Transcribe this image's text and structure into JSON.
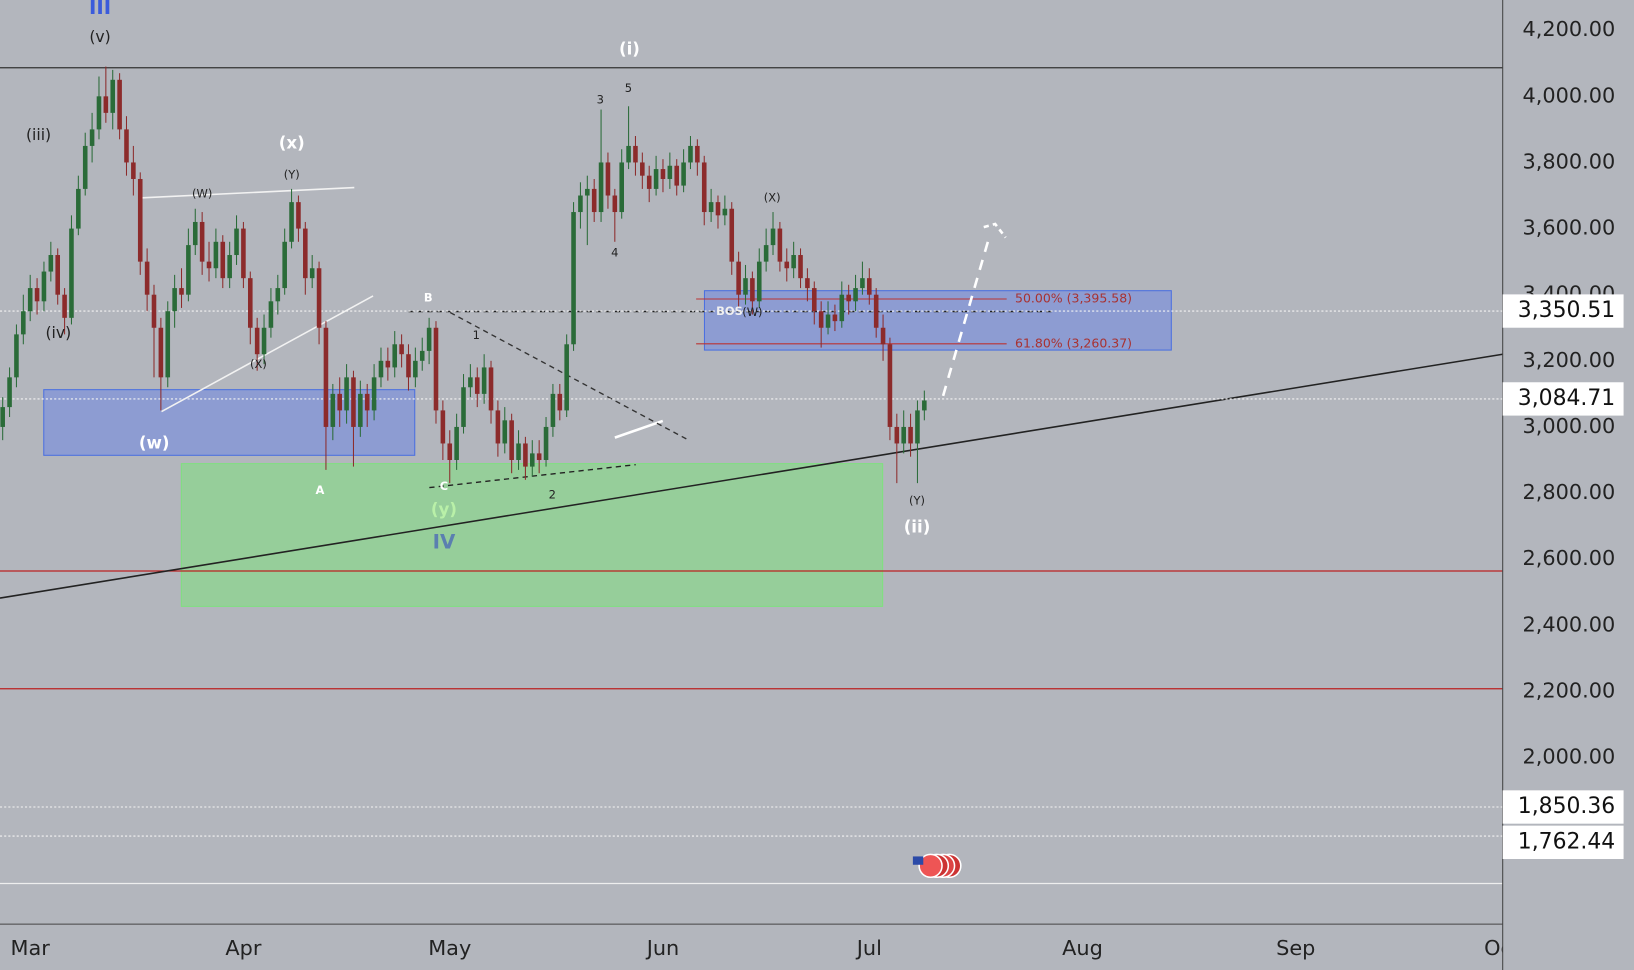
{
  "chart_data": {
    "type": "candlestick",
    "x": [
      -4,
      -3,
      -2,
      -1,
      0,
      1,
      2,
      3,
      4,
      5,
      6,
      7,
      8,
      9,
      10,
      11,
      12,
      13,
      14,
      15,
      16,
      17,
      18,
      19,
      20,
      21,
      22,
      23,
      24,
      25,
      26,
      27,
      28,
      29,
      30,
      31,
      32,
      33,
      34,
      35,
      36,
      37,
      38,
      39,
      40,
      41,
      42,
      43,
      44,
      45,
      46,
      47,
      48,
      49,
      50,
      51,
      52,
      53,
      54,
      55,
      56,
      57,
      58,
      59,
      60,
      61,
      62,
      63,
      64,
      65,
      66,
      67,
      68,
      69,
      70,
      71,
      72,
      73,
      74,
      75,
      76,
      77,
      78,
      79,
      80,
      81,
      82,
      83,
      84,
      85,
      86,
      87,
      88,
      89,
      90,
      91,
      92,
      93,
      94,
      95,
      96,
      97,
      98,
      99,
      100,
      101,
      102,
      103,
      104,
      105,
      106,
      107,
      108,
      109,
      110,
      111,
      112,
      113,
      114,
      115,
      116,
      117,
      118,
      119,
      120,
      121,
      122,
      123,
      124,
      125,
      126,
      127,
      128,
      129,
      130
    ],
    "open": [
      3000,
      3060,
      3150,
      3280,
      3350,
      3420,
      3380,
      3470,
      3520,
      3400,
      3330,
      3600,
      3720,
      3850,
      3900,
      4000,
      3950,
      4050,
      3900,
      3800,
      3750,
      3500,
      3400,
      3300,
      3150,
      3350,
      3420,
      3400,
      3550,
      3620,
      3500,
      3480,
      3560,
      3450,
      3520,
      3600,
      3450,
      3300,
      3220,
      3300,
      3380,
      3420,
      3560,
      3680,
      3600,
      3450,
      3480,
      3300,
      3000,
      3100,
      3050,
      3150,
      3000,
      3100,
      3050,
      3150,
      3200,
      3180,
      3250,
      3220,
      3150,
      3200,
      3230,
      3300,
      3050,
      2950,
      2900,
      3000,
      3120,
      3150,
      3100,
      3180,
      3050,
      2950,
      3020,
      2900,
      2950,
      2880,
      2920,
      2900,
      3000,
      3100,
      3050,
      3250,
      3650,
      3700,
      3720,
      3650,
      3800,
      3700,
      3650,
      3800,
      3850,
      3800,
      3760,
      3720,
      3780,
      3750,
      3790,
      3730,
      3800,
      3850,
      3800,
      3650,
      3680,
      3640,
      3660,
      3500,
      3400,
      3450,
      3380,
      3500,
      3550,
      3600,
      3500,
      3480,
      3520,
      3450,
      3420,
      3350,
      3300,
      3340,
      3320,
      3400,
      3380,
      3420,
      3450,
      3400,
      3300,
      3250,
      3000,
      2950,
      3000,
      2950,
      3050
    ],
    "high": [
      3090,
      3180,
      3310,
      3400,
      3460,
      3450,
      3500,
      3560,
      3540,
      3420,
      3640,
      3760,
      3890,
      3950,
      4060,
      4090,
      4080,
      4070,
      3940,
      3850,
      3770,
      3540,
      3430,
      3330,
      3380,
      3460,
      3480,
      3600,
      3660,
      3650,
      3560,
      3600,
      3580,
      3560,
      3640,
      3620,
      3470,
      3330,
      3340,
      3420,
      3460,
      3600,
      3720,
      3700,
      3620,
      3520,
      3500,
      3320,
      3130,
      3150,
      3190,
      3170,
      3140,
      3130,
      3190,
      3240,
      3240,
      3290,
      3280,
      3250,
      3240,
      3270,
      3330,
      3320,
      3080,
      2990,
      3040,
      3160,
      3190,
      3180,
      3220,
      3200,
      3080,
      3060,
      3040,
      2990,
      2970,
      2960,
      2960,
      3030,
      3130,
      3130,
      3280,
      3680,
      3740,
      3760,
      3750,
      3960,
      3830,
      3720,
      3840,
      3970,
      3880,
      3830,
      3790,
      3820,
      3810,
      3830,
      3810,
      3840,
      3880,
      3870,
      3820,
      3720,
      3700,
      3700,
      3680,
      3530,
      3490,
      3470,
      3540,
      3600,
      3650,
      3620,
      3540,
      3560,
      3540,
      3480,
      3440,
      3380,
      3380,
      3370,
      3440,
      3430,
      3460,
      3500,
      3480,
      3420,
      3340,
      3270,
      3040,
      3050,
      3040,
      3080,
      3110
    ],
    "low": [
      2960,
      3030,
      3120,
      3250,
      3320,
      3340,
      3350,
      3440,
      3370,
      3280,
      3310,
      3580,
      3700,
      3800,
      3870,
      3920,
      3900,
      3870,
      3760,
      3700,
      3460,
      3350,
      3150,
      3050,
      3120,
      3300,
      3360,
      3380,
      3520,
      3460,
      3440,
      3450,
      3420,
      3420,
      3490,
      3420,
      3250,
      3170,
      3190,
      3270,
      3340,
      3400,
      3540,
      3560,
      3400,
      3420,
      3250,
      2870,
      2960,
      3000,
      3010,
      2880,
      2970,
      3000,
      3020,
      3120,
      3140,
      3150,
      3180,
      3110,
      3120,
      3170,
      3190,
      3010,
      2900,
      2830,
      2870,
      2980,
      3090,
      3060,
      3070,
      3010,
      2910,
      2920,
      2860,
      2870,
      2840,
      2850,
      2860,
      2880,
      2970,
      3020,
      3030,
      3230,
      3600,
      3550,
      3620,
      3620,
      3660,
      3560,
      3630,
      3780,
      3760,
      3720,
      3680,
      3700,
      3710,
      3720,
      3700,
      3710,
      3780,
      3760,
      3610,
      3620,
      3600,
      3610,
      3460,
      3360,
      3370,
      3340,
      3360,
      3470,
      3520,
      3470,
      3440,
      3450,
      3420,
      3380,
      3310,
      3240,
      3280,
      3290,
      3300,
      3340,
      3350,
      3400,
      3370,
      3270,
      3200,
      2960,
      2830,
      2920,
      2910,
      2830,
      3020
    ],
    "close": [
      3060,
      3150,
      3280,
      3350,
      3420,
      3380,
      3470,
      3520,
      3400,
      3330,
      3600,
      3720,
      3850,
      3900,
      4000,
      3950,
      4050,
      3900,
      3800,
      3750,
      3500,
      3400,
      3300,
      3150,
      3350,
      3420,
      3400,
      3550,
      3620,
      3500,
      3480,
      3560,
      3450,
      3520,
      3600,
      3450,
      3300,
      3220,
      3300,
      3380,
      3420,
      3560,
      3680,
      3600,
      3450,
      3480,
      3300,
      3000,
      3100,
      3050,
      3150,
      3000,
      3100,
      3050,
      3150,
      3200,
      3180,
      3250,
      3220,
      3150,
      3200,
      3230,
      3300,
      3050,
      2950,
      2900,
      3000,
      3120,
      3150,
      3100,
      3180,
      3050,
      2950,
      3020,
      2900,
      2950,
      2880,
      2920,
      2900,
      3000,
      3100,
      3050,
      3250,
      3650,
      3700,
      3720,
      3650,
      3800,
      3700,
      3650,
      3800,
      3850,
      3800,
      3760,
      3720,
      3780,
      3750,
      3790,
      3730,
      3800,
      3850,
      3800,
      3650,
      3680,
      3640,
      3660,
      3500,
      3400,
      3450,
      3380,
      3500,
      3550,
      3600,
      3500,
      3480,
      3520,
      3450,
      3420,
      3350,
      3300,
      3340,
      3320,
      3400,
      3380,
      3420,
      3450,
      3400,
      3300,
      3250,
      3000,
      2950,
      3000,
      2950,
      3050,
      3080
    ],
    "up_color": "#2a6b38",
    "down_color": "#8c2b2b",
    "xlim": [
      -4.39,
      214.09
    ],
    "ylim": [
      1496,
      4291.4
    ],
    "xticks": [
      {
        "value": 0,
        "label": "Mar"
      },
      {
        "value": 31,
        "label": "Apr"
      },
      {
        "value": 61,
        "label": "May"
      },
      {
        "value": 92,
        "label": "Jun"
      },
      {
        "value": 122,
        "label": "Jul"
      },
      {
        "value": 153,
        "label": "Aug"
      },
      {
        "value": 184,
        "label": "Sep"
      },
      {
        "value": 214,
        "label": "Oct"
      }
    ],
    "yticks": [
      {
        "value": 2000,
        "label": "2,000.00"
      },
      {
        "value": 2200,
        "label": "2,200.00"
      },
      {
        "value": 2400,
        "label": "2,400.00"
      },
      {
        "value": 2600,
        "label": "2,600.00"
      },
      {
        "value": 2800,
        "label": "2,800.00"
      },
      {
        "value": 3000,
        "label": "3,000.00"
      },
      {
        "value": 3200,
        "label": "3,200.00"
      },
      {
        "value": 3400,
        "label": "3,400.00"
      },
      {
        "value": 3600,
        "label": "3,600.00"
      },
      {
        "value": 3800,
        "label": "3,800.00"
      },
      {
        "value": 4000,
        "label": "4,000.00"
      },
      {
        "value": 4200,
        "label": "4,200.00"
      }
    ],
    "price_labels": [
      {
        "value": 3350.51,
        "label": "3,350.51"
      },
      {
        "value": 3084.71,
        "label": "3,084.71"
      },
      {
        "value": 1850.36,
        "label": "1,850.36"
      },
      {
        "value": 1762.44,
        "label": "1,762.44"
      }
    ],
    "fib_labels": [
      "50.00% (3,395.58)",
      "61.80% (3,260.37)"
    ],
    "annotations": [
      "III",
      "(v)",
      "(iii)",
      "(iv)",
      "(w)",
      "(W)",
      "(X)",
      "(Y)",
      "(x)",
      "B",
      "1",
      "A",
      "C",
      "(y)",
      "IV",
      "2",
      "3",
      "4",
      "5",
      "(i)",
      "(X)",
      "(W)",
      "BOS",
      "(Y)",
      "(ii)"
    ]
  }
}
